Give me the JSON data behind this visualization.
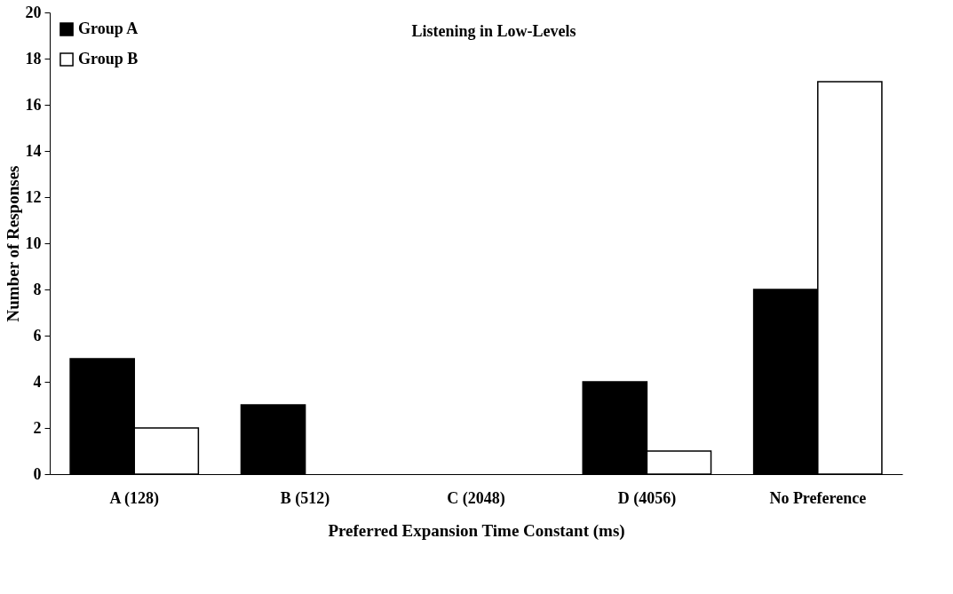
{
  "chart_data": {
    "type": "bar",
    "title": "Listening in Low-Levels",
    "xlabel": "Preferred Expansion Time Constant (ms)",
    "ylabel": "Number of Responses",
    "categories": [
      "A (128)",
      "B (512)",
      "C (2048)",
      "D (4056)",
      "No Preference"
    ],
    "series": [
      {
        "name": "Group A",
        "color": "#000000",
        "values": [
          5,
          3,
          0,
          4,
          8
        ]
      },
      {
        "name": "Group B",
        "color": "#ffffff",
        "values": [
          2,
          0,
          0,
          1,
          17
        ]
      }
    ],
    "ylim": [
      0,
      20
    ],
    "yticks": [
      0,
      2,
      4,
      6,
      8,
      10,
      12,
      14,
      16,
      18,
      20
    ],
    "grid": false,
    "legend": "top left"
  }
}
